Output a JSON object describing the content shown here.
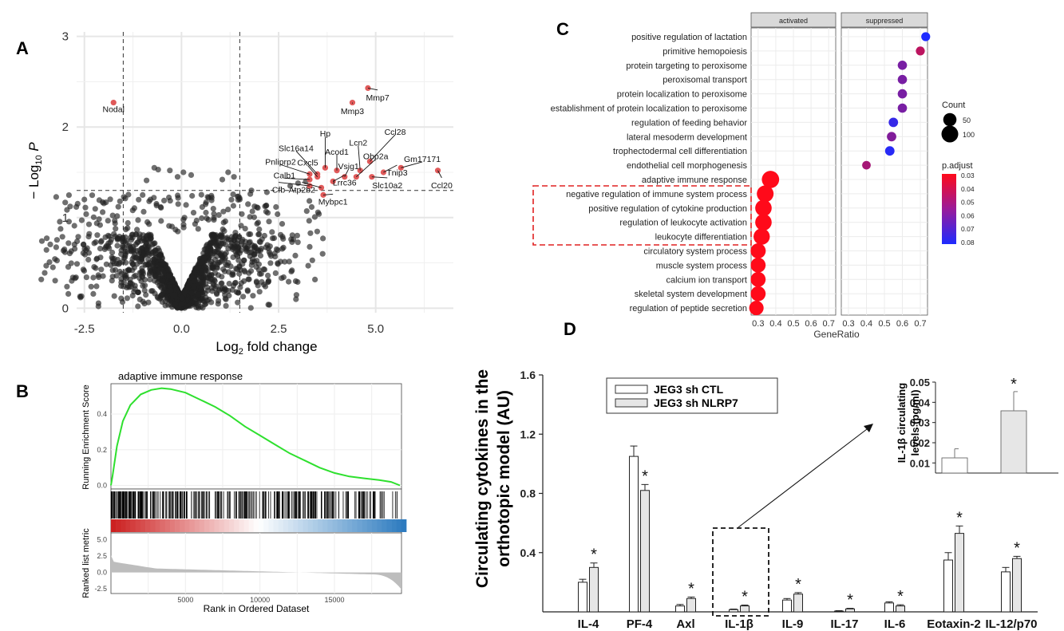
{
  "panels": {
    "A": {
      "letter": "A",
      "chart_data": {
        "type": "scatter",
        "xlabel": "Log2 fold change",
        "ylabel": "-Log10 P",
        "xlim": [
          -2.7,
          7.0
        ],
        "ylim": [
          -0.05,
          3.05
        ],
        "xticks": [
          -2.5,
          0.0,
          2.5,
          5.0
        ],
        "xtick_labels": [
          "-2.5",
          "0.0",
          "2.5",
          "5.0"
        ],
        "yticks": [
          0,
          1,
          2,
          3
        ],
        "ytick_labels": [
          "0",
          "1",
          "2",
          "3"
        ],
        "fc_cutoffs": [
          -1.5,
          1.5
        ],
        "p_cutoff": 1.3,
        "colors": {
          "significant": "#e05a5a",
          "other": "#222222"
        },
        "labeled_genes": [
          {
            "name": "Nodal",
            "x": -1.75,
            "y": 2.27,
            "lx": -1.75,
            "ly": 2.2
          },
          {
            "name": "Mmp7",
            "x": 4.8,
            "y": 2.43,
            "lx": 5.05,
            "ly": 2.33
          },
          {
            "name": "Mmp3",
            "x": 4.4,
            "y": 2.27,
            "lx": 4.4,
            "ly": 2.18
          },
          {
            "name": "Ccl28",
            "x": 4.85,
            "y": 1.62,
            "lx": 5.5,
            "ly": 1.95
          },
          {
            "name": "Lcn2",
            "x": 4.6,
            "y": 1.52,
            "lx": 4.55,
            "ly": 1.83
          },
          {
            "name": "Obp2a",
            "x": 4.5,
            "y": 1.45,
            "lx": 5.0,
            "ly": 1.68
          },
          {
            "name": "Hp",
            "x": 3.7,
            "y": 1.55,
            "lx": 3.7,
            "ly": 1.93
          },
          {
            "name": "Slc16a14",
            "x": 3.5,
            "y": 1.48,
            "lx": 2.95,
            "ly": 1.77
          },
          {
            "name": "Acod1",
            "x": 4.0,
            "y": 1.52,
            "lx": 4.0,
            "ly": 1.73
          },
          {
            "name": "Vsig1",
            "x": 4.2,
            "y": 1.45,
            "lx": 4.3,
            "ly": 1.57
          },
          {
            "name": "Gm17171",
            "x": 5.65,
            "y": 1.55,
            "lx": 6.2,
            "ly": 1.65
          },
          {
            "name": "Tnip3",
            "x": 5.2,
            "y": 1.5,
            "lx": 5.55,
            "ly": 1.5
          },
          {
            "name": "Pnliprp2",
            "x": 3.3,
            "y": 1.48,
            "lx": 2.55,
            "ly": 1.62
          },
          {
            "name": "Cxcl5",
            "x": 3.5,
            "y": 1.45,
            "lx": 3.25,
            "ly": 1.61
          },
          {
            "name": "Calb1",
            "x": 3.3,
            "y": 1.42,
            "lx": 2.65,
            "ly": 1.47
          },
          {
            "name": "Lrrc36",
            "x": 3.9,
            "y": 1.4,
            "lx": 4.2,
            "ly": 1.39
          },
          {
            "name": "Slc10a2",
            "x": 4.9,
            "y": 1.45,
            "lx": 5.3,
            "ly": 1.36
          },
          {
            "name": "Ccl20",
            "x": 6.6,
            "y": 1.52,
            "lx": 6.7,
            "ly": 1.36
          },
          {
            "name": "Cfb",
            "x": 3.3,
            "y": 1.35,
            "lx": 2.5,
            "ly": 1.31
          },
          {
            "name": "Atp2b2",
            "x": 3.6,
            "y": 1.33,
            "lx": 3.1,
            "ly": 1.31
          },
          {
            "name": "Mybpc1",
            "x": 3.65,
            "y": 1.25,
            "lx": 3.9,
            "ly": 1.18
          }
        ]
      }
    },
    "B": {
      "letter": "B",
      "chart_data": {
        "type": "line",
        "title": "adaptive immune response",
        "xlabel": "Rank in Ordered Dataset",
        "ylabel_top": "Running Enrichment Score",
        "ylabel_bottom": "Ranked list metric",
        "xlim": [
          0,
          19500
        ],
        "xticks": [
          5000,
          10000,
          15000
        ],
        "xtick_labels": [
          "5000",
          "10000",
          "15000"
        ],
        "es_yticks": [
          0.0,
          0.2,
          0.4
        ],
        "es_ytick_labels": [
          "0.0",
          "0.2",
          "0.4"
        ],
        "es_ylim": [
          -0.02,
          0.57
        ],
        "metric_yticks": [
          5.0,
          2.5,
          0.0,
          -2.5
        ],
        "metric_ytick_labels": [
          "5.0",
          "2.5",
          "0.0",
          "-2.5"
        ],
        "metric_ylim": [
          -3.2,
          6.0
        ],
        "es_curve": [
          [
            0,
            0
          ],
          [
            100,
            0.05
          ],
          [
            400,
            0.22
          ],
          [
            800,
            0.36
          ],
          [
            1300,
            0.45
          ],
          [
            2000,
            0.51
          ],
          [
            2700,
            0.535
          ],
          [
            3400,
            0.545
          ],
          [
            4000,
            0.54
          ],
          [
            5000,
            0.52
          ],
          [
            6000,
            0.48
          ],
          [
            7000,
            0.44
          ],
          [
            8000,
            0.39
          ],
          [
            9000,
            0.33
          ],
          [
            10000,
            0.28
          ],
          [
            11000,
            0.23
          ],
          [
            12000,
            0.18
          ],
          [
            13000,
            0.14
          ],
          [
            14000,
            0.1
          ],
          [
            15000,
            0.07
          ],
          [
            16000,
            0.05
          ],
          [
            17000,
            0.04
          ],
          [
            18000,
            0.03
          ],
          [
            18800,
            0.02
          ],
          [
            19400,
            0.0
          ]
        ],
        "colors": {
          "es_line": "#2ee02e",
          "heat_high": "#cc2020",
          "heat_mid": "#ffffff",
          "heat_low": "#2d7bbf",
          "metric_fill": "#bdbdbd"
        }
      }
    },
    "C": {
      "letter": "C",
      "chart_data": {
        "type": "scatter",
        "facets": [
          "activated",
          "suppressed"
        ],
        "xlabel": "GeneRatio",
        "xticks": [
          0.3,
          0.4,
          0.5,
          0.6,
          0.7
        ],
        "xtick_labels": [
          "0.3",
          "0.4",
          "0.5",
          "0.6",
          "0.7"
        ],
        "xlim": [
          0.26,
          0.74
        ],
        "terms": [
          "positive regulation of lactation",
          "primitive hemopoiesis",
          "protein targeting to peroxisome",
          "peroxisomal transport",
          "protein localization to peroxisome",
          "establishment of protein localization to peroxisome",
          "regulation of feeding behavior",
          "lateral mesoderm development",
          "trophectodermal cell differentiation",
          "endothelial cell morphogenesis",
          "adaptive immune response",
          "negative regulation of immune system process",
          "positive regulation of cytokine production",
          "regulation of leukocyte activation",
          "leukocyte differentiation",
          "circulatory system process",
          "muscle system process",
          "calcium ion transport",
          "skeletal system development",
          "regulation of peptide secretion"
        ],
        "points": [
          {
            "facet": 1,
            "term": 0,
            "x": 0.73,
            "p": 0.08,
            "count": 12
          },
          {
            "facet": 1,
            "term": 1,
            "x": 0.7,
            "p": 0.045,
            "count": 12
          },
          {
            "facet": 1,
            "term": 2,
            "x": 0.6,
            "p": 0.06,
            "count": 14
          },
          {
            "facet": 1,
            "term": 3,
            "x": 0.6,
            "p": 0.06,
            "count": 14
          },
          {
            "facet": 1,
            "term": 4,
            "x": 0.6,
            "p": 0.06,
            "count": 14
          },
          {
            "facet": 1,
            "term": 5,
            "x": 0.6,
            "p": 0.06,
            "count": 14
          },
          {
            "facet": 1,
            "term": 6,
            "x": 0.55,
            "p": 0.075,
            "count": 15
          },
          {
            "facet": 1,
            "term": 7,
            "x": 0.54,
            "p": 0.058,
            "count": 15
          },
          {
            "facet": 1,
            "term": 8,
            "x": 0.53,
            "p": 0.078,
            "count": 15
          },
          {
            "facet": 1,
            "term": 9,
            "x": 0.4,
            "p": 0.05,
            "count": 10
          },
          {
            "facet": 0,
            "term": 10,
            "x": 0.37,
            "p": 0.03,
            "count": 110
          },
          {
            "facet": 0,
            "term": 11,
            "x": 0.34,
            "p": 0.03,
            "count": 100
          },
          {
            "facet": 0,
            "term": 12,
            "x": 0.33,
            "p": 0.03,
            "count": 95
          },
          {
            "facet": 0,
            "term": 13,
            "x": 0.33,
            "p": 0.03,
            "count": 95
          },
          {
            "facet": 0,
            "term": 14,
            "x": 0.32,
            "p": 0.03,
            "count": 92
          },
          {
            "facet": 0,
            "term": 15,
            "x": 0.3,
            "p": 0.03,
            "count": 75
          },
          {
            "facet": 0,
            "term": 16,
            "x": 0.3,
            "p": 0.03,
            "count": 72
          },
          {
            "facet": 0,
            "term": 17,
            "x": 0.3,
            "p": 0.03,
            "count": 72
          },
          {
            "facet": 0,
            "term": 18,
            "x": 0.3,
            "p": 0.03,
            "count": 72
          },
          {
            "facet": 0,
            "term": 19,
            "x": 0.29,
            "p": 0.03,
            "count": 65
          }
        ],
        "size_legend": {
          "title": "Count",
          "values": [
            50,
            100
          ],
          "labels": [
            "50",
            "100"
          ]
        },
        "color_legend": {
          "title": "p.adjust",
          "values": [
            0.03,
            0.04,
            0.05,
            0.06,
            0.07,
            0.08
          ],
          "labels": [
            "0.03",
            "0.04",
            "0.05",
            "0.06",
            "0.07",
            "0.08"
          ],
          "low_color": "#ff0a1a",
          "high_color": "#1e2bff"
        },
        "highlight_terms": [
          11,
          14
        ]
      }
    },
    "D": {
      "letter": "D",
      "chart_data": {
        "type": "bar",
        "ylabel_line1": "Circulating cytokines in the",
        "ylabel_line2": "orthotopic model (AU)",
        "categories": [
          "IL-4",
          "PF-4",
          "Axl",
          "IL-1β",
          "IL-9",
          "IL-17",
          "IL-6",
          "Eotaxin-2",
          "IL-12/p70"
        ],
        "ylim": [
          0,
          1.6
        ],
        "yticks": [
          0.4,
          0.8,
          1.2,
          1.6
        ],
        "ytick_labels": [
          "0.4",
          "0.8",
          "1.2",
          "1.6"
        ],
        "series": [
          {
            "name": "JEG3 sh CTL",
            "values": [
              0.2,
              1.05,
              0.04,
              0.015,
              0.08,
              0.005,
              0.06,
              0.35,
              0.27
            ],
            "errors": [
              0.02,
              0.07,
              0.01,
              0.004,
              0.01,
              0.003,
              0.008,
              0.05,
              0.03
            ]
          },
          {
            "name": "JEG3 sh NLRP7",
            "values": [
              0.3,
              0.82,
              0.09,
              0.04,
              0.12,
              0.02,
              0.04,
              0.53,
              0.36
            ],
            "errors": [
              0.03,
              0.04,
              0.01,
              0.006,
              0.01,
              0.004,
              0.008,
              0.05,
              0.015
            ]
          }
        ],
        "significance": [
          true,
          true,
          true,
          true,
          true,
          true,
          true,
          true,
          true
        ],
        "star": "*",
        "highlight_category": 3,
        "inset": {
          "ylabel_line1": "IL-1β circulating",
          "ylabel_line2": "levels (pg/ml)",
          "ylim": [
            0.005,
            0.05
          ],
          "yticks": [
            0.01,
            0.02,
            0.03,
            0.04,
            0.05
          ],
          "ytick_labels": [
            "0.01",
            "0.02",
            "0.03",
            "0.04",
            "0.05"
          ],
          "values": [
            0.0125,
            0.0358
          ],
          "errors": [
            0.0045,
            0.0095
          ],
          "star": "*"
        },
        "colors": {
          "ctl": "#ffffff",
          "nlrp7": "#e6e6e6"
        }
      }
    }
  }
}
